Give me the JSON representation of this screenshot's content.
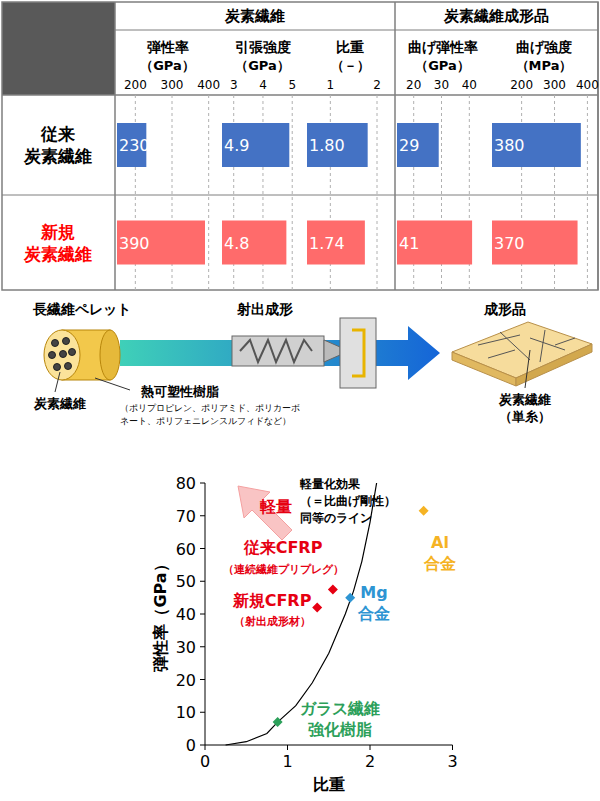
{
  "table": {
    "groups": [
      {
        "title": "炭素繊維",
        "columns": [
          {
            "title": "弾性率",
            "unit": "（GPa）",
            "xlim": [
              150,
              420
            ],
            "xticks": [
              200,
              300,
              400
            ],
            "values": [
              230,
              390
            ]
          },
          {
            "title": "引張強度",
            "unit": "（GPa）",
            "xlim": [
              2.6,
              5.3
            ],
            "xticks": [
              3,
              4,
              5
            ],
            "values": [
              4.9,
              4.8
            ]
          },
          {
            "title": "比重",
            "unit": "（－）",
            "xlim": [
              0.5,
              2.3
            ],
            "xticks": [
              1,
              2
            ],
            "values": [
              1.8,
              1.74
            ],
            "value_labels": [
              "1.80",
              "1.74"
            ]
          }
        ]
      },
      {
        "title": "炭素繊維成形品",
        "columns": [
          {
            "title": "曲げ弾性率",
            "unit": "（GPa）",
            "xlim": [
              14,
              46
            ],
            "xticks": [
              20,
              30,
              40
            ],
            "values": [
              29,
              41
            ]
          },
          {
            "title": "曲げ強度",
            "unit": "（MPa）",
            "xlim": [
              110,
              420
            ],
            "xticks": [
              200,
              300,
              400
            ],
            "values": [
              380,
              370
            ]
          }
        ]
      }
    ],
    "rows": [
      {
        "label": [
          "従来",
          "炭素繊維"
        ],
        "color": "#4472c4"
      },
      {
        "label": [
          "新規",
          "炭素繊維"
        ],
        "color": "#ff6b6b"
      }
    ]
  },
  "diagram": {
    "pellet_title": "長繊維ペレット",
    "fiber_label": "炭素繊維",
    "resin_label": "熱可塑性樹脂",
    "resin_examples": [
      "（ポリプロピレン、ポリアミド、ポリカーボ",
      "ネート、ポリフェニレンスルフィドなど）"
    ],
    "process": "射出成形",
    "product_title": "成形品",
    "product_fiber": [
      "炭素繊維",
      "（単糸）"
    ]
  },
  "chart_data": {
    "type": "scatter",
    "x_label": "比重",
    "y_label": "弾性率（GPa）",
    "xlim": [
      0,
      3
    ],
    "xticks": [
      0,
      1,
      2,
      3
    ],
    "ylim": [
      0,
      80
    ],
    "yticks": [
      0,
      10,
      20,
      30,
      40,
      50,
      60,
      70,
      80
    ],
    "marker": "diamond",
    "series": [
      {
        "label": [
          "従来CFRP"
        ],
        "sublabel": "（連続繊維プリプレグ）",
        "color": "#e60012",
        "x": [
          1.55
        ],
        "values": [
          47.5
        ]
      },
      {
        "label": [
          "新規CFRP"
        ],
        "sublabel": "（射出成形材）",
        "color": "#e60012",
        "x": [
          1.36
        ],
        "values": [
          42
        ]
      },
      {
        "label": [
          "Mg",
          "合金"
        ],
        "color": "#2e95d3",
        "x": [
          1.76
        ],
        "values": [
          45
        ]
      },
      {
        "label": [
          "Al",
          "合金"
        ],
        "color": "#f5b324",
        "x": [
          2.65
        ],
        "values": [
          71.5
        ]
      },
      {
        "label": [
          "ガラス繊維",
          "強化樹脂"
        ],
        "color": "#2ca05a",
        "x": [
          0.88
        ],
        "values": [
          7
        ]
      }
    ],
    "reference_line": {
      "label": [
        "軽量化効果",
        "（＝比曲げ剛性）",
        "同等のライン"
      ],
      "color": "#000000",
      "x": [
        0.25,
        0.5,
        0.75,
        0.88,
        1.1,
        1.3,
        1.5,
        1.7,
        1.8,
        1.9,
        2.0,
        2.08
      ],
      "values": [
        0,
        1,
        3.5,
        7,
        12,
        19,
        28,
        40,
        47,
        56,
        68,
        80
      ]
    },
    "arrow_label": "軽量"
  }
}
